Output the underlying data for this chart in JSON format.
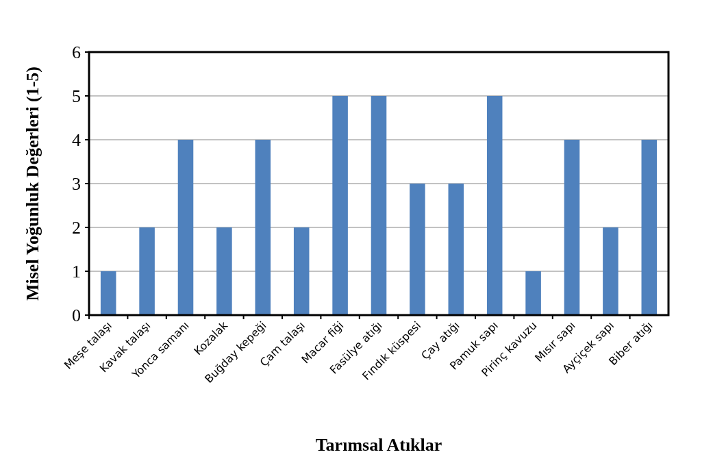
{
  "chart_data": {
    "type": "bar",
    "xlabel": "Tarımsal Atıklar",
    "ylabel": "Misel Yoğunluk Değerleri (1-5)",
    "categories": [
      "Meşe talaşı",
      "Kavak talaşı",
      "Yonca samanı",
      "Kozalak",
      "Buğday kepeği",
      "Çam talaşı",
      "Macar fiği",
      "Fasülye atığı",
      "Fındık küspesi",
      "Çay  atığı",
      "Pamuk sapı",
      "Pirinç kavuzu",
      "Mısır sapı",
      "Ayçiçek sapı",
      "Biber atığı"
    ],
    "values": [
      1,
      2,
      4,
      2,
      4,
      2,
      5,
      5,
      3,
      3,
      5,
      1,
      4,
      2,
      4
    ],
    "color": "#4f81bd",
    "ylim": [
      0,
      6
    ],
    "yticks": [
      0,
      1,
      2,
      3,
      4,
      5,
      6
    ],
    "grid": "y"
  }
}
